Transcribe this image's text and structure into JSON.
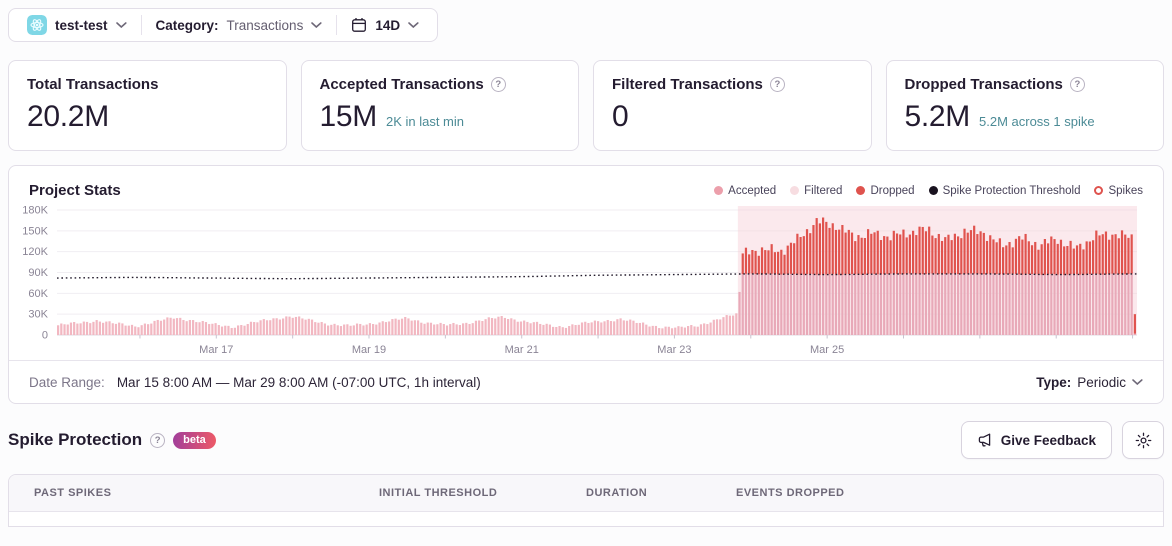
{
  "top_bar": {
    "project_name": "test-test",
    "category_label": "Category:",
    "category_value": "Transactions",
    "date_range_button": "14D"
  },
  "cards": [
    {
      "title": "Total Transactions",
      "value": "20.2M",
      "sub": ""
    },
    {
      "title": "Accepted Transactions",
      "value": "15M",
      "sub": "2K in last min"
    },
    {
      "title": "Filtered Transactions",
      "value": "0",
      "sub": ""
    },
    {
      "title": "Dropped Transactions",
      "value": "5.2M",
      "sub": "5.2M across 1 spike"
    }
  ],
  "chart_panel": {
    "title": "Project Stats",
    "legend": [
      {
        "label": "Accepted",
        "color": "#ec9fab",
        "type": "dot"
      },
      {
        "label": "Filtered",
        "color": "#f7dde1",
        "type": "dot"
      },
      {
        "label": "Dropped",
        "color": "#df534e",
        "type": "dot"
      },
      {
        "label": "Spike Protection Threshold",
        "color": "#19121f",
        "type": "dot"
      },
      {
        "label": "Spikes",
        "color": "#df534e",
        "type": "ring"
      }
    ],
    "date_range_label": "Date Range:",
    "date_range_value": "Mar 15 8:00 AM — Mar 29 8:00 AM (-07:00 UTC, 1h interval)",
    "type_label": "Type:",
    "type_value": "Periodic"
  },
  "chart_data": {
    "type": "bar",
    "stacked": true,
    "title": "Project Stats",
    "interval": "1h",
    "x_range": "Mar 15 8:00 AM — Mar 29 8:00 AM (-07:00 UTC)",
    "bars_count": 336,
    "ylim": [
      0,
      180000
    ],
    "units": "anchor values are in thousands of transactions, linearly interpolated per hour with small sinusoidal jitter",
    "y_ticks": [
      {
        "label": "180K",
        "value": 180000
      },
      {
        "label": "150K",
        "value": 150000
      },
      {
        "label": "120K",
        "value": 120000
      },
      {
        "label": "90K",
        "value": 90000
      },
      {
        "label": "60K",
        "value": 60000
      },
      {
        "label": "30K",
        "value": 30000
      },
      {
        "label": "0",
        "value": 0
      }
    ],
    "x_ticks": [
      {
        "label": "Mar 17",
        "f": 0.1475
      },
      {
        "label": "Mar 19",
        "f": 0.2889
      },
      {
        "label": "Mar 21",
        "f": 0.4303
      },
      {
        "label": "Mar 23",
        "f": 0.5717
      },
      {
        "label": "Mar 25",
        "f": 0.7131
      }
    ],
    "spike": {
      "start_index": 212,
      "end_index": 335,
      "count_label": "1 spike",
      "events_dropped": "5.2M"
    },
    "accepted_pre_anchors": [
      14,
      17,
      21,
      16,
      13,
      19,
      25,
      21,
      15,
      12,
      17,
      23,
      27,
      21,
      16,
      13,
      16,
      20,
      24,
      18,
      14,
      17,
      22,
      26,
      20,
      15,
      12,
      16,
      20,
      23,
      17,
      12,
      10,
      14,
      22,
      30
    ],
    "threshold_anchors": [
      82,
      83,
      82,
      81,
      82,
      83,
      84,
      86,
      87,
      88,
      87,
      88,
      88,
      87,
      88
    ],
    "total_spike_anchors": [
      116,
      124,
      120,
      138,
      164,
      158,
      142,
      146,
      142,
      148,
      152,
      136,
      150,
      148,
      128,
      140,
      130,
      138,
      124,
      142,
      146,
      140
    ],
    "transition_bar": {
      "accepted": 62,
      "dropped": 0
    },
    "last_bar": {
      "accepted": 2,
      "dropped": 28
    },
    "jitter": {
      "pre": 1.6,
      "spike": 5.5
    },
    "legend_position": "top-right",
    "grid": true,
    "colors": {
      "accepted": "#f2b7c1",
      "accepted_spike": "#e8a9b8",
      "dropped": "#e0534e",
      "threshold": "#221a2b",
      "spike_region": "#f6ced6",
      "spike_region_opacity": 0.45,
      "grid": "#f0eef2",
      "axis_line": "#dcd8e1",
      "axis_text": "#8a8495"
    }
  },
  "spike_protection": {
    "title": "Spike Protection",
    "badge": "beta",
    "feedback_button": "Give Feedback"
  },
  "table": {
    "headers": [
      "PAST SPIKES",
      "INITIAL THRESHOLD",
      "DURATION",
      "EVENTS DROPPED"
    ]
  }
}
